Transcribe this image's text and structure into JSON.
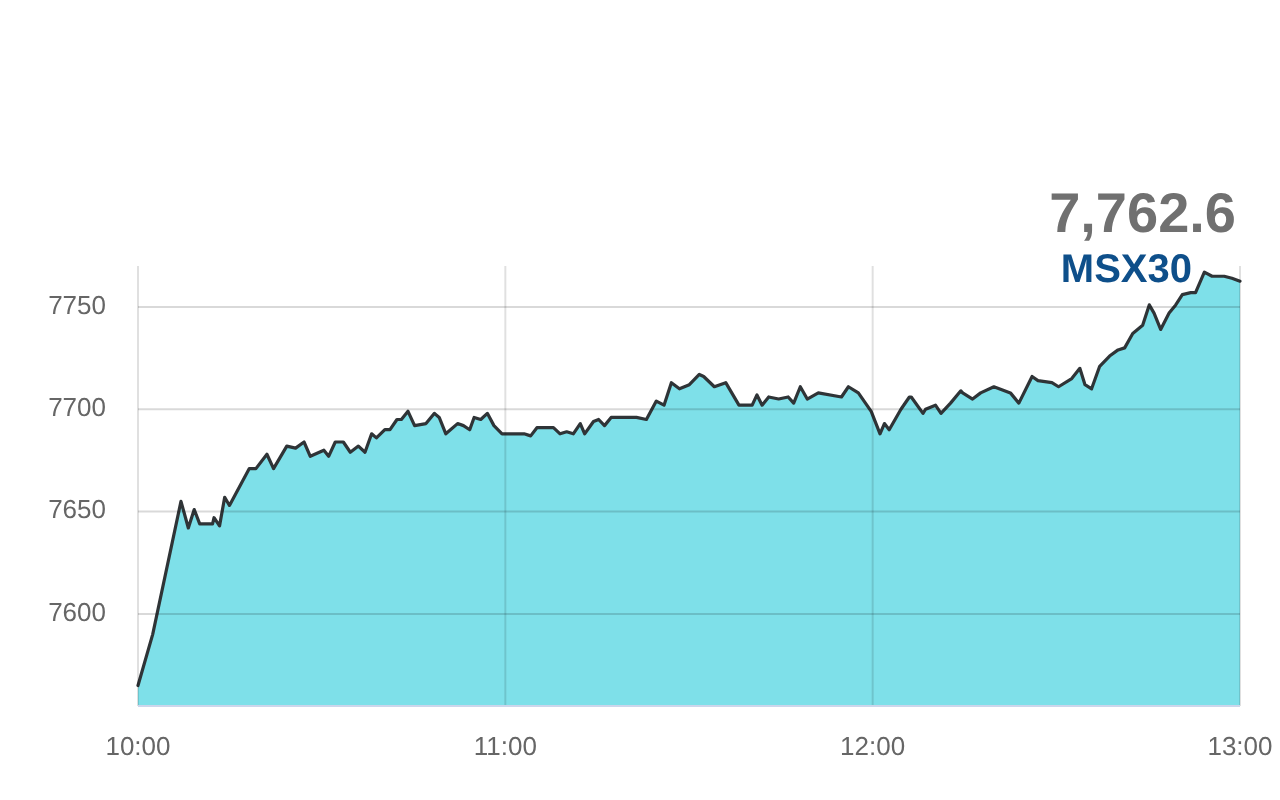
{
  "chart_data": {
    "type": "area",
    "title": "MSX30",
    "annotations": [
      "7,762.6"
    ],
    "x": [
      10.0,
      10.04,
      10.117,
      10.137,
      10.153,
      10.168,
      10.203,
      10.207,
      10.222,
      10.236,
      10.249,
      10.303,
      10.321,
      10.351,
      10.369,
      10.405,
      10.429,
      10.452,
      10.469,
      10.506,
      10.519,
      10.537,
      10.559,
      10.578,
      10.6,
      10.618,
      10.636,
      10.649,
      10.672,
      10.686,
      10.705,
      10.717,
      10.735,
      10.753,
      10.784,
      10.807,
      10.82,
      10.838,
      10.87,
      10.886,
      10.903,
      10.915,
      10.933,
      10.951,
      10.969,
      10.991,
      11.015,
      11.051,
      11.069,
      11.086,
      11.131,
      11.149,
      11.167,
      11.185,
      11.204,
      11.216,
      11.24,
      11.254,
      11.27,
      11.288,
      11.357,
      11.384,
      11.411,
      11.432,
      11.452,
      11.474,
      11.501,
      11.528,
      11.54,
      11.569,
      11.6,
      11.636,
      11.672,
      11.685,
      11.699,
      11.717,
      11.744,
      11.77,
      11.785,
      11.803,
      11.822,
      11.852,
      11.915,
      11.934,
      11.961,
      11.996,
      12.02,
      12.032,
      12.045,
      12.077,
      12.1,
      12.105,
      12.137,
      12.144,
      12.171,
      12.186,
      12.212,
      12.24,
      12.245,
      12.272,
      12.294,
      12.33,
      12.375,
      12.398,
      12.434,
      12.45,
      12.488,
      12.506,
      12.542,
      12.564,
      12.578,
      12.596,
      12.618,
      12.645,
      12.668,
      12.686,
      12.708,
      12.735,
      12.753,
      12.766,
      12.784,
      12.807,
      12.825,
      12.843,
      12.866,
      12.879,
      12.903,
      12.924,
      12.957,
      12.978,
      13.0
    ],
    "values": [
      7565,
      7590,
      7655,
      7642,
      7651,
      7644,
      7644,
      7647,
      7643,
      7657,
      7653,
      7671,
      7671,
      7678,
      7671,
      7682,
      7681,
      7684,
      7677,
      7680,
      7677,
      7684,
      7684,
      7679,
      7682,
      7679,
      7688,
      7686,
      7690,
      7690,
      7695,
      7695,
      7699,
      7692,
      7693,
      7698,
      7696,
      7688,
      7693,
      7692,
      7690,
      7696,
      7695,
      7698,
      7692,
      7688,
      7688,
      7688,
      7687,
      7691,
      7691,
      7688,
      7689,
      7688,
      7693,
      7688,
      7694,
      7695,
      7692,
      7696,
      7696,
      7695,
      7704,
      7702,
      7713,
      7710,
      7712,
      7717,
      7716,
      7711,
      7713,
      7702,
      7702,
      7707,
      7702,
      7706,
      7705,
      7706,
      7703,
      7711,
      7705,
      7708,
      7706,
      7711,
      7708,
      7699,
      7688,
      7693,
      7690,
      7700,
      7706,
      7706,
      7698,
      7700,
      7702,
      7698,
      7703,
      7709,
      7708,
      7705,
      7708,
      7711,
      7708,
      7703,
      7716,
      7714,
      7713,
      7711,
      7715,
      7720,
      7712,
      7710,
      7721,
      7726,
      7729,
      7730,
      7737,
      7741,
      7751,
      7747,
      7739,
      7747,
      7751,
      7756,
      7757,
      7757,
      7767,
      7765,
      7765,
      7764,
      7762.6
    ],
    "color": "#7ee0e9",
    "xlim": [
      10,
      13
    ],
    "xticks": [
      {
        "value": 10,
        "label": "10:00"
      },
      {
        "value": 11,
        "label": "11:00"
      },
      {
        "value": 12,
        "label": "12:00"
      },
      {
        "value": 13,
        "label": "13:00"
      }
    ],
    "ylim": [
      7555,
      7770
    ],
    "yticks": [
      7600,
      7650,
      7700,
      7750
    ],
    "grid": true
  }
}
